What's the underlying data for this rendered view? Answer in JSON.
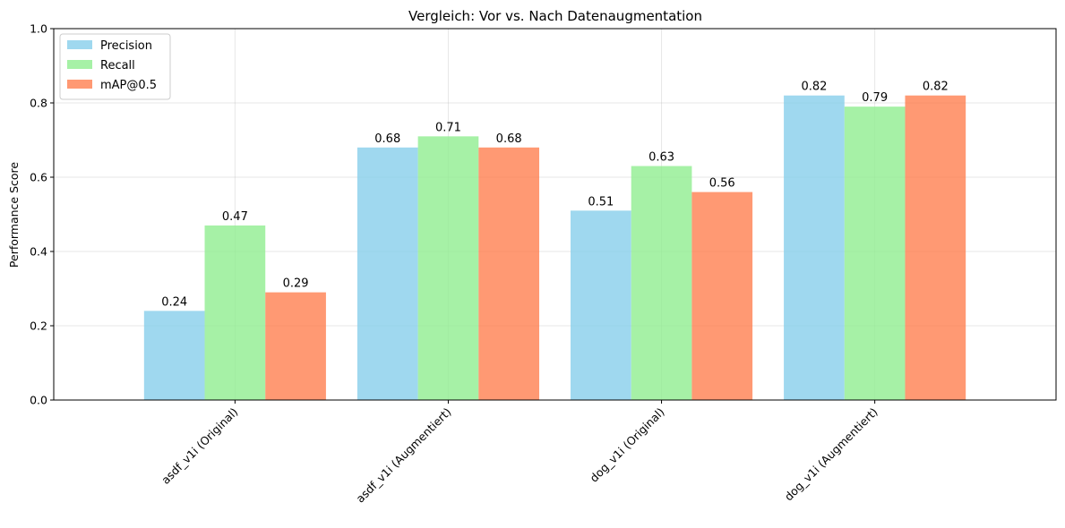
{
  "chart_data": {
    "type": "bar",
    "title": "Vergleich: Vor vs. Nach Datenaugmentation",
    "xlabel": "",
    "ylabel": "Performance Score",
    "ylim": [
      0,
      1.0
    ],
    "yticks": [
      "0.0",
      "0.2",
      "0.4",
      "0.6",
      "0.8",
      "1.0"
    ],
    "categories": [
      "asdf_v1i (Original)",
      "asdf_v1i (Augmentiert)",
      "dog_v1i (Original)",
      "dog_v1i (Augmentiert)"
    ],
    "series": [
      {
        "name": "Precision",
        "color": "#87ceeb",
        "values": [
          0.24,
          0.68,
          0.51,
          0.82
        ],
        "labels": [
          "0.24",
          "0.68",
          "0.51",
          "0.82"
        ]
      },
      {
        "name": "Recall",
        "color": "#90ee90",
        "values": [
          0.47,
          0.71,
          0.63,
          0.79
        ],
        "labels": [
          "0.47",
          "0.71",
          "0.63",
          "0.79"
        ]
      },
      {
        "name": "mAP@0.5",
        "color": "#ff7f50",
        "values": [
          0.29,
          0.68,
          0.56,
          0.82
        ],
        "labels": [
          "0.29",
          "0.68",
          "0.56",
          "0.82"
        ]
      }
    ],
    "grid": true,
    "legend_position": "top-left"
  }
}
